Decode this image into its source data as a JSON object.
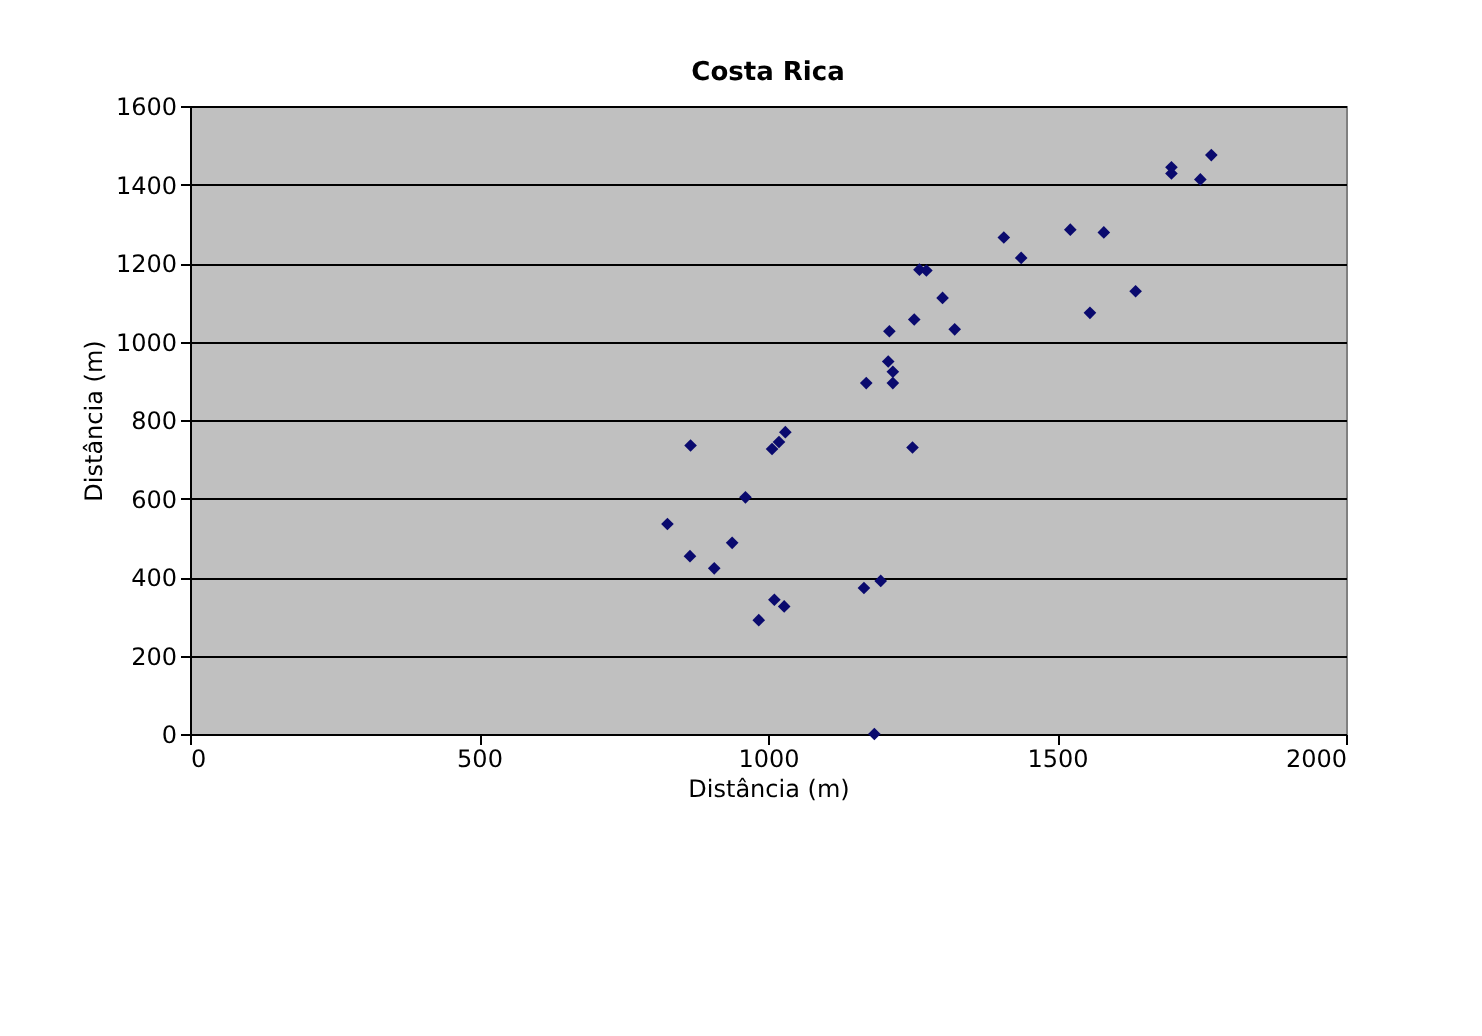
{
  "chart_data": {
    "type": "scatter",
    "title": "Costa Rica",
    "xlabel": "Distância (m)",
    "ylabel": "Distância (m)",
    "x": [
      866,
      1019,
      1030,
      1007,
      1250,
      961,
      826,
      938,
      865,
      907,
      1011,
      1028,
      984,
      1166,
      1195,
      1184,
      1170,
      1216,
      1208,
      1216,
      1210,
      1253,
      1323,
      1302,
      1262,
      1274,
      1438,
      1767,
      1698,
      1698,
      1748,
      1408,
      1523,
      1581,
      1636,
      1557
    ],
    "series": [
      {
        "color": "#0a0a6e",
        "values": [
          735,
          744,
          769,
          726,
          730,
          603,
          535,
          487,
          453,
          422,
          342,
          325,
          290,
          372,
          390,
          0,
          894,
          894,
          949,
          923,
          1026,
          1056,
          1031,
          1111,
          1183,
          1181,
          1213,
          1475,
          1444,
          1428,
          1413,
          1265,
          1285,
          1278,
          1128,
          1073
        ]
      }
    ],
    "xlim": [
      0,
      2000
    ],
    "xticks": [
      0,
      500,
      1000,
      1500,
      2000
    ],
    "ylim": [
      0,
      1600
    ],
    "yticks": [
      0,
      200,
      400,
      600,
      800,
      1000,
      1200,
      1400,
      1600
    ],
    "grid": "y",
    "marker": "diamond"
  }
}
